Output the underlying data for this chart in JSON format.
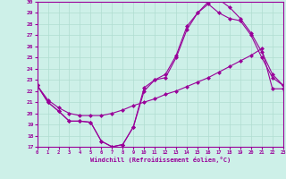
{
  "xlabel": "Windchill (Refroidissement éolien,°C)",
  "xlim": [
    0,
    23
  ],
  "ylim": [
    17,
    30
  ],
  "xticks": [
    0,
    1,
    2,
    3,
    4,
    5,
    6,
    7,
    8,
    9,
    10,
    11,
    12,
    13,
    14,
    15,
    16,
    17,
    18,
    19,
    20,
    21,
    22,
    23
  ],
  "yticks": [
    17,
    18,
    19,
    20,
    21,
    22,
    23,
    24,
    25,
    26,
    27,
    28,
    29,
    30
  ],
  "bg_color": "#cdf0e8",
  "grid_color": "#b0ddd0",
  "line_color": "#990099",
  "curve_a_x": [
    0,
    1,
    2,
    3,
    4,
    5,
    6,
    7,
    8,
    9,
    10,
    11,
    12,
    13,
    14,
    15,
    16,
    17,
    18,
    19,
    20,
    21,
    22,
    23
  ],
  "curve_a_y": [
    22.5,
    21.0,
    20.2,
    19.3,
    19.3,
    19.2,
    17.5,
    17.0,
    17.2,
    18.8,
    22.3,
    23.0,
    23.5,
    25.2,
    27.8,
    29.0,
    30.0,
    30.2,
    29.5,
    28.5,
    27.2,
    25.5,
    23.5,
    22.5
  ],
  "curve_b_x": [
    0,
    1,
    2,
    3,
    4,
    5,
    6,
    7,
    8,
    9,
    10,
    11,
    12,
    13,
    14,
    15,
    16,
    17,
    18,
    19,
    20,
    21,
    22,
    23
  ],
  "curve_b_y": [
    22.5,
    21.0,
    20.2,
    19.3,
    19.3,
    19.2,
    17.5,
    17.0,
    17.2,
    18.8,
    22.0,
    23.0,
    23.2,
    25.0,
    27.5,
    29.0,
    29.8,
    29.0,
    28.5,
    28.3,
    27.0,
    25.0,
    23.2,
    22.5
  ],
  "curve_c_x": [
    0,
    1,
    2,
    3,
    4,
    5,
    6,
    7,
    8,
    9,
    10,
    11,
    12,
    13,
    14,
    15,
    16,
    17,
    18,
    19,
    20,
    21,
    22,
    23
  ],
  "curve_c_y": [
    22.5,
    21.2,
    20.5,
    20.0,
    19.8,
    19.8,
    19.8,
    20.0,
    20.3,
    20.7,
    21.0,
    21.3,
    21.7,
    22.0,
    22.4,
    22.8,
    23.2,
    23.7,
    24.2,
    24.7,
    25.2,
    25.8,
    22.2,
    22.2
  ]
}
